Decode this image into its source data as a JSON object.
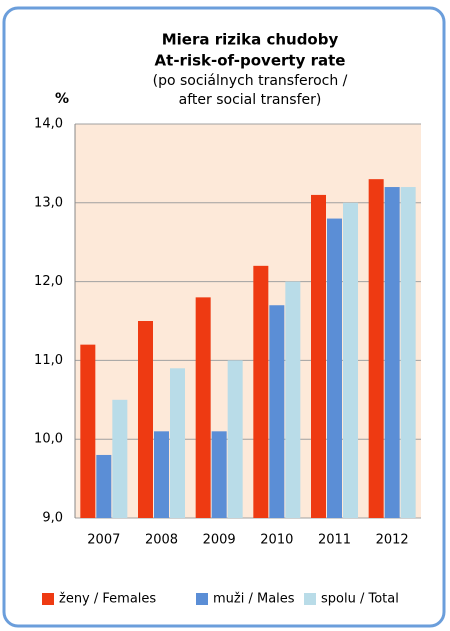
{
  "chart_data": {
    "type": "bar",
    "title": [
      "Miera  rizika  chudoby",
      "At-risk-of-poverty rate"
    ],
    "subtitle": [
      "(po sociálnych transferoch /",
      "after social transfer)"
    ],
    "y_label": "%",
    "categories": [
      "2007",
      "2008",
      "2009",
      "2010",
      "2011",
      "2012"
    ],
    "series": [
      {
        "name": "ženy / Females",
        "color": "#ee3a12",
        "values": [
          11.2,
          11.5,
          11.8,
          12.2,
          13.1,
          13.3
        ]
      },
      {
        "name": "muži / Males",
        "color": "#5b8ed6",
        "values": [
          9.8,
          10.1,
          10.1,
          11.7,
          12.8,
          13.2
        ]
      },
      {
        "name": "spolu / Total",
        "color": "#b9dce8",
        "values": [
          10.5,
          10.9,
          11.0,
          12.0,
          13.0,
          13.2
        ]
      }
    ],
    "ylim": [
      9,
      14
    ],
    "yticks": [
      {
        "value": 9,
        "label": "9,0"
      },
      {
        "value": 10,
        "label": "10,0"
      },
      {
        "value": 11,
        "label": "11,0"
      },
      {
        "value": 12,
        "label": "12,0"
      },
      {
        "value": 13,
        "label": "13,0"
      },
      {
        "value": 14,
        "label": "14,0"
      }
    ],
    "grid": true,
    "legend": "bottom"
  }
}
